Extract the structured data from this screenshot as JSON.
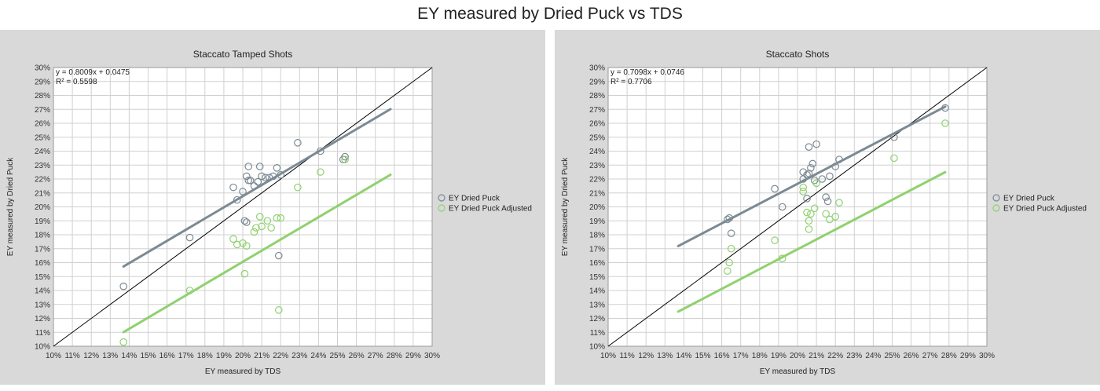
{
  "figure_title": "EY measured by Dried Puck vs TDS",
  "colors": {
    "panel_bg": "#d9d9d9",
    "plot_bg": "#ffffff",
    "grid": "#d0d0d0",
    "gray_series": "#7b8a93",
    "green_series": "#8fd16e",
    "identity_line": "#000000"
  },
  "chart_data": [
    {
      "type": "scatter",
      "title": "Staccato Tamped Shots",
      "xlabel": "EY measured by TDS",
      "ylabel": "EY measured by Dried Puck",
      "xlim": [
        0.1,
        0.3
      ],
      "ylim": [
        0.1,
        0.3
      ],
      "grid": true,
      "legend_position": "right",
      "x_ticks": [
        "10%",
        "11%",
        "12%",
        "13%",
        "14%",
        "15%",
        "16%",
        "17%",
        "18%",
        "19%",
        "20%",
        "21%",
        "22%",
        "23%",
        "24%",
        "25%",
        "26%",
        "27%",
        "28%",
        "29%",
        "30%"
      ],
      "y_ticks": [
        "10%",
        "11%",
        "12%",
        "13%",
        "14%",
        "15%",
        "16%",
        "17%",
        "18%",
        "19%",
        "20%",
        "21%",
        "22%",
        "23%",
        "24%",
        "25%",
        "26%",
        "27%",
        "28%",
        "29%",
        "30%"
      ],
      "equation": "y = 0.8009x + 0.0475",
      "r2": "R² = 0.5598",
      "identity_line": true,
      "series": [
        {
          "name": "EY Dried Puck",
          "color": "#7b8a93",
          "trendline": {
            "slope": 0.8009,
            "intercept": 0.0475,
            "x_range": [
              0.137,
              0.278
            ]
          },
          "points": [
            [
              0.137,
              0.143
            ],
            [
              0.172,
              0.178
            ],
            [
              0.195,
              0.214
            ],
            [
              0.197,
              0.205
            ],
            [
              0.2,
              0.211
            ],
            [
              0.201,
              0.19
            ],
            [
              0.202,
              0.189
            ],
            [
              0.202,
              0.222
            ],
            [
              0.203,
              0.219
            ],
            [
              0.203,
              0.229
            ],
            [
              0.204,
              0.219
            ],
            [
              0.206,
              0.215
            ],
            [
              0.208,
              0.218
            ],
            [
              0.209,
              0.229
            ],
            [
              0.21,
              0.222
            ],
            [
              0.212,
              0.221
            ],
            [
              0.214,
              0.221
            ],
            [
              0.216,
              0.222
            ],
            [
              0.218,
              0.228
            ],
            [
              0.219,
              0.165
            ],
            [
              0.22,
              0.223
            ],
            [
              0.229,
              0.246
            ],
            [
              0.241,
              0.24
            ],
            [
              0.253,
              0.234
            ],
            [
              0.254,
              0.236
            ]
          ]
        },
        {
          "name": "EY Dried Puck Adjusted",
          "color": "#8fd16e",
          "trendline": {
            "slope": 0.8009,
            "intercept": 0.0004,
            "x_range": [
              0.137,
              0.278
            ]
          },
          "points": [
            [
              0.137,
              0.103
            ],
            [
              0.172,
              0.14
            ],
            [
              0.195,
              0.177
            ],
            [
              0.197,
              0.173
            ],
            [
              0.2,
              0.174
            ],
            [
              0.201,
              0.152
            ],
            [
              0.202,
              0.172
            ],
            [
              0.206,
              0.182
            ],
            [
              0.207,
              0.185
            ],
            [
              0.209,
              0.193
            ],
            [
              0.21,
              0.186
            ],
            [
              0.213,
              0.19
            ],
            [
              0.215,
              0.185
            ],
            [
              0.218,
              0.192
            ],
            [
              0.219,
              0.126
            ],
            [
              0.22,
              0.192
            ],
            [
              0.229,
              0.214
            ],
            [
              0.241,
              0.225
            ],
            [
              0.254,
              0.234
            ]
          ]
        }
      ]
    },
    {
      "type": "scatter",
      "title": "Staccato Shots",
      "xlabel": "EY measured by TDS",
      "ylabel": "EY measured by Dried Puck",
      "xlim": [
        0.1,
        0.3
      ],
      "ylim": [
        0.1,
        0.3
      ],
      "grid": true,
      "legend_position": "right",
      "x_ticks": [
        "10%",
        "11%",
        "12%",
        "13%",
        "14%",
        "15%",
        "16%",
        "17%",
        "18%",
        "19%",
        "20%",
        "21%",
        "22%",
        "23%",
        "24%",
        "25%",
        "26%",
        "27%",
        "28%",
        "29%",
        "30%"
      ],
      "y_ticks": [
        "10%",
        "11%",
        "12%",
        "13%",
        "14%",
        "15%",
        "16%",
        "17%",
        "18%",
        "19%",
        "20%",
        "21%",
        "22%",
        "23%",
        "24%",
        "25%",
        "26%",
        "27%",
        "28%",
        "29%",
        "30%"
      ],
      "equation": "y = 0.7098x + 0.0746",
      "r2": "R² = 0.7706",
      "identity_line": true,
      "series": [
        {
          "name": "EY Dried Puck",
          "color": "#7b8a93",
          "trendline": {
            "slope": 0.7098,
            "intercept": 0.0746,
            "x_range": [
              0.137,
              0.278
            ]
          },
          "points": [
            [
              0.163,
              0.191
            ],
            [
              0.164,
              0.192
            ],
            [
              0.165,
              0.181
            ],
            [
              0.188,
              0.213
            ],
            [
              0.192,
              0.2
            ],
            [
              0.203,
              0.22
            ],
            [
              0.203,
              0.225
            ],
            [
              0.205,
              0.206
            ],
            [
              0.205,
              0.223
            ],
            [
              0.206,
              0.224
            ],
            [
              0.206,
              0.243
            ],
            [
              0.207,
              0.228
            ],
            [
              0.208,
              0.231
            ],
            [
              0.209,
              0.219
            ],
            [
              0.21,
              0.245
            ],
            [
              0.213,
              0.22
            ],
            [
              0.215,
              0.207
            ],
            [
              0.216,
              0.204
            ],
            [
              0.217,
              0.222
            ],
            [
              0.22,
              0.229
            ],
            [
              0.222,
              0.234
            ],
            [
              0.251,
              0.25
            ],
            [
              0.278,
              0.271
            ]
          ]
        },
        {
          "name": "EY Dried Puck Adjusted",
          "color": "#8fd16e",
          "trendline": {
            "slope": 0.7098,
            "intercept": 0.0276,
            "x_range": [
              0.137,
              0.278
            ]
          },
          "points": [
            [
              0.163,
              0.154
            ],
            [
              0.164,
              0.16
            ],
            [
              0.165,
              0.17
            ],
            [
              0.188,
              0.176
            ],
            [
              0.192,
              0.163
            ],
            [
              0.203,
              0.211
            ],
            [
              0.203,
              0.214
            ],
            [
              0.205,
              0.196
            ],
            [
              0.206,
              0.19
            ],
            [
              0.206,
              0.184
            ],
            [
              0.207,
              0.195
            ],
            [
              0.209,
              0.199
            ],
            [
              0.21,
              0.217
            ],
            [
              0.215,
              0.195
            ],
            [
              0.217,
              0.191
            ],
            [
              0.22,
              0.193
            ],
            [
              0.222,
              0.203
            ],
            [
              0.251,
              0.235
            ],
            [
              0.278,
              0.26
            ]
          ]
        }
      ]
    }
  ]
}
